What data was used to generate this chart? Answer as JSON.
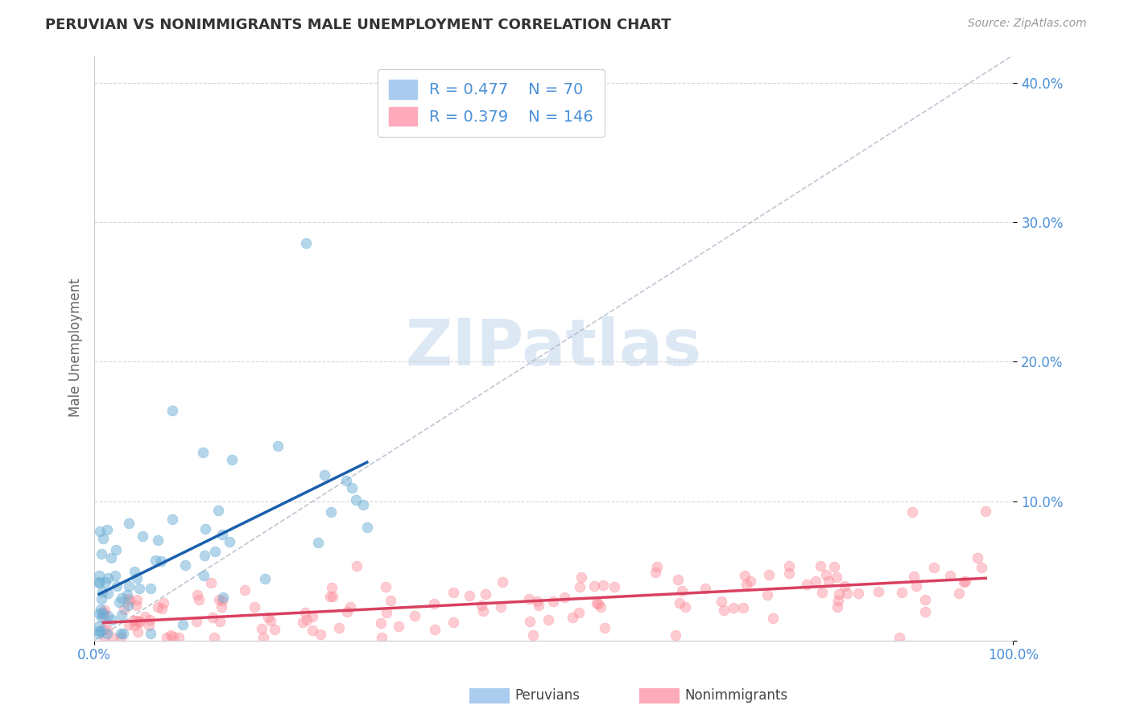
{
  "title": "PERUVIAN VS NONIMMIGRANTS MALE UNEMPLOYMENT CORRELATION CHART",
  "source": "Source: ZipAtlas.com",
  "ylabel": "Male Unemployment",
  "xlim": [
    0,
    1
  ],
  "ylim": [
    0,
    0.42
  ],
  "yticks": [
    0.0,
    0.1,
    0.2,
    0.3,
    0.4
  ],
  "ytick_labels": [
    "",
    "10.0%",
    "20.0%",
    "30.0%",
    "40.0%"
  ],
  "xtick_labels": [
    "0.0%",
    "100.0%"
  ],
  "xticks": [
    0.0,
    1.0
  ],
  "peruvian_color": "#6baed6",
  "nonimmigrant_color": "#fc8d9a",
  "peruvian_trend_color": "#1a5fad",
  "nonimmigrant_trend_color": "#d94060",
  "peruvian_R": 0.477,
  "peruvian_N": 70,
  "nonimmigrant_R": 0.379,
  "nonimmigrant_N": 146,
  "background_color": "#ffffff",
  "grid_color": "#cccccc",
  "axis_label_color": "#4a90d9",
  "legend_label_color": "#4a90d9",
  "peruvians_seed": 42,
  "nonimmigrants_seed": 99
}
